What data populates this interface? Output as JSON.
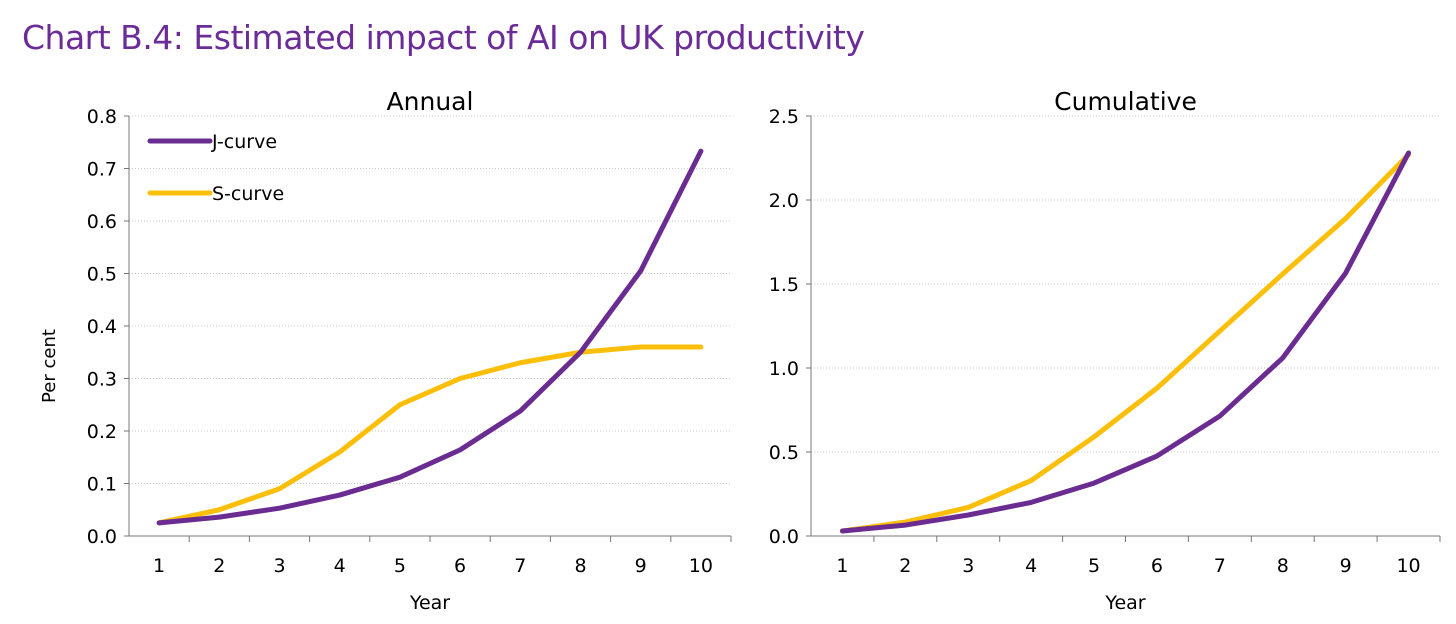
{
  "title": "Chart B.4: Estimated impact of AI on UK productivity",
  "colors": {
    "j": "#6a2c91",
    "s": "#fbbf0a",
    "title": "#6b2c98"
  },
  "chart_data": [
    {
      "type": "line",
      "title": "Annual",
      "xlabel": "Year",
      "ylabel": "Per cent",
      "categories": [
        "1",
        "2",
        "3",
        "4",
        "5",
        "6",
        "7",
        "8",
        "9",
        "10"
      ],
      "ylim": [
        0,
        0.8
      ],
      "yticks": [
        "0.0",
        "0.1",
        "0.2",
        "0.3",
        "0.4",
        "0.5",
        "0.6",
        "0.7",
        "0.8"
      ],
      "legend": "top-left",
      "series": [
        {
          "name": "J-curve",
          "values": [
            0.025,
            0.036,
            0.053,
            0.078,
            0.112,
            0.164,
            0.238,
            0.35,
            0.505,
            0.733
          ]
        },
        {
          "name": "S-curve",
          "values": [
            0.025,
            0.05,
            0.09,
            0.16,
            0.25,
            0.3,
            0.33,
            0.35,
            0.36,
            0.36
          ]
        }
      ]
    },
    {
      "type": "line",
      "title": "Cumulative",
      "xlabel": "Year",
      "ylabel": "",
      "categories": [
        "1",
        "2",
        "3",
        "4",
        "5",
        "6",
        "7",
        "8",
        "9",
        "10"
      ],
      "ylim": [
        0,
        2.5
      ],
      "yticks": [
        "0.0",
        "0.5",
        "1.0",
        "1.5",
        "2.0",
        "2.5"
      ],
      "series": [
        {
          "name": "J-curve",
          "values": [
            0.03,
            0.065,
            0.125,
            0.2,
            0.315,
            0.476,
            0.714,
            1.06,
            1.565,
            2.28
          ]
        },
        {
          "name": "S-curve",
          "values": [
            0.03,
            0.083,
            0.17,
            0.33,
            0.59,
            0.88,
            1.22,
            1.56,
            1.89,
            2.27
          ]
        }
      ]
    }
  ]
}
